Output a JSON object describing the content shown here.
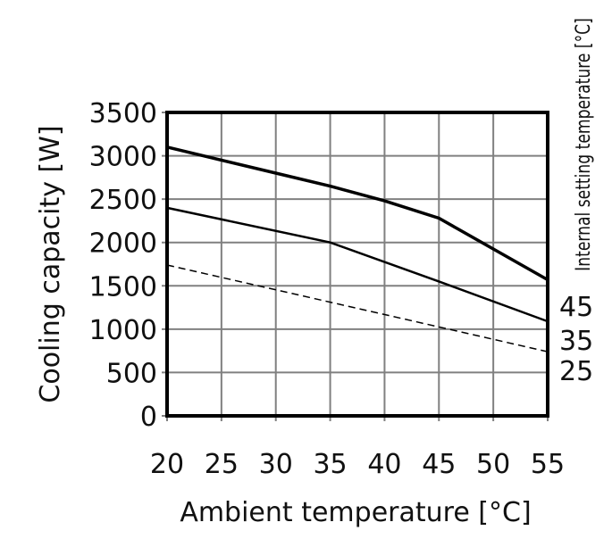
{
  "chart_data": {
    "type": "line",
    "title": "",
    "xlabel": "Ambient temperature [°C]",
    "ylabel": "Cooling capacity [W]",
    "right_label": "Internal setting temperature [°C]",
    "xlim": [
      20,
      55
    ],
    "ylim": [
      0,
      3500
    ],
    "xticks": [
      20,
      25,
      30,
      35,
      40,
      45,
      50,
      55
    ],
    "yticks": [
      0,
      500,
      1000,
      1500,
      2000,
      2500,
      3000,
      3500
    ],
    "grid": true,
    "grid_color": "#808080",
    "series": [
      {
        "name": "45",
        "style": "solid-thick",
        "x": [
          20,
          30,
          35,
          40,
          45,
          55
        ],
        "y": [
          3100,
          2800,
          2650,
          2480,
          2280,
          1570
        ]
      },
      {
        "name": "35",
        "style": "solid",
        "x": [
          20,
          35,
          45,
          55
        ],
        "y": [
          2400,
          2000,
          1550,
          1090
        ]
      },
      {
        "name": "25",
        "style": "dashed",
        "x": [
          20,
          55
        ],
        "y": [
          1740,
          740
        ]
      }
    ]
  }
}
